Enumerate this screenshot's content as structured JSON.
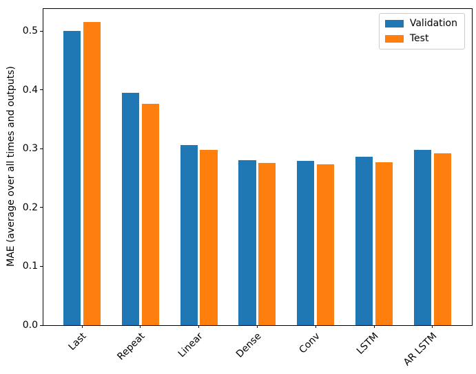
{
  "chart_data": {
    "type": "bar",
    "title": "",
    "xlabel": "",
    "ylabel": "MAE (average over all times and outputs)",
    "categories": [
      "Last",
      "Repeat",
      "Linear",
      "Dense",
      "Conv",
      "LSTM",
      "AR LSTM"
    ],
    "series": [
      {
        "name": "Validation",
        "color": "#1f77b4",
        "values": [
          0.501,
          0.395,
          0.306,
          0.281,
          0.28,
          0.286,
          0.298
        ]
      },
      {
        "name": "Test",
        "color": "#ff7f0e",
        "values": [
          0.516,
          0.377,
          0.298,
          0.276,
          0.274,
          0.277,
          0.292
        ]
      }
    ],
    "ylim": [
      0,
      0.538
    ],
    "ytick_values": [
      0.0,
      0.1,
      0.2,
      0.3,
      0.4,
      0.5
    ],
    "ytick_labels": [
      "0.0",
      "0.1",
      "0.2",
      "0.3",
      "0.4",
      "0.5"
    ],
    "xtick_rotation_deg": 45,
    "grid": false,
    "legend": {
      "position": "upper-right",
      "entries": [
        "Validation",
        "Test"
      ]
    },
    "axis_color": "#000000",
    "legend_border_color": "#cccccc",
    "background_color": "#ffffff"
  }
}
